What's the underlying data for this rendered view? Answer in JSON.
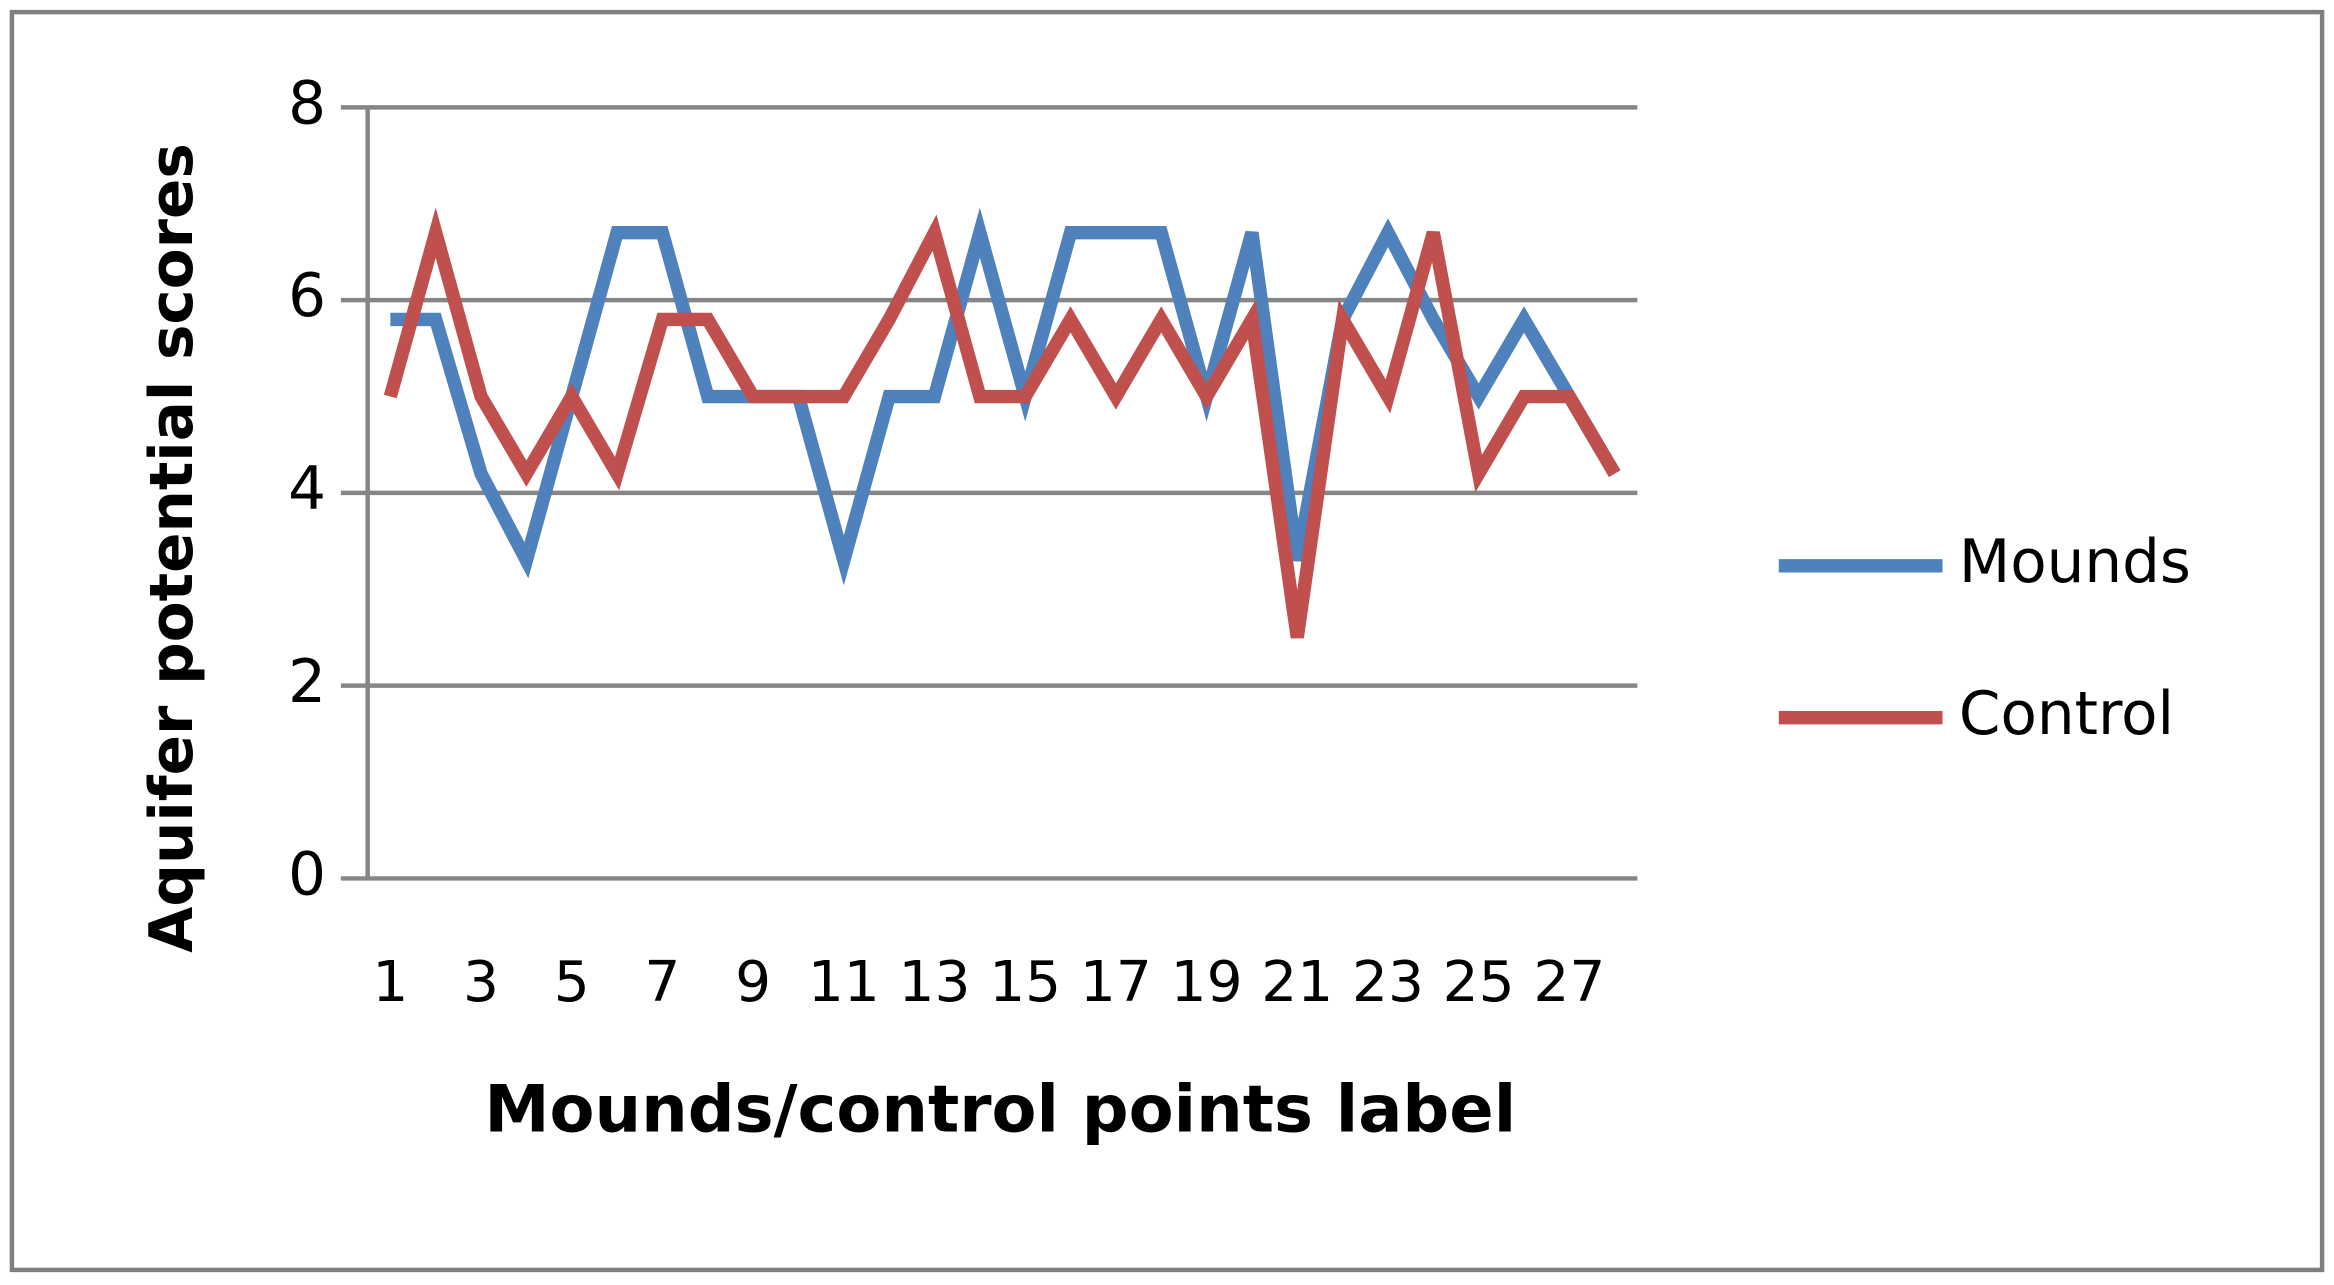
{
  "chart_data": {
    "type": "line",
    "x_label": "Mounds/control points label",
    "y_label": "Aquifer potential scores",
    "categories": [
      "1",
      null,
      "3",
      null,
      "5",
      null,
      "7",
      null,
      "9",
      null,
      "11",
      null,
      "13",
      null,
      "15",
      null,
      "17",
      null,
      "19",
      null,
      "21",
      null,
      "23",
      null,
      "25",
      null,
      "27",
      null
    ],
    "series": [
      {
        "name": "Mounds",
        "color": "#4f81bd",
        "values": [
          5.8,
          5.8,
          4.2,
          3.3,
          5.0,
          6.7,
          6.7,
          5.0,
          5.0,
          5.0,
          3.3,
          5.0,
          5.0,
          6.7,
          5.0,
          6.7,
          6.7,
          6.7,
          5.0,
          6.7,
          3.3,
          5.8,
          6.7,
          5.8,
          5.0,
          5.8,
          5.0,
          4.2
        ]
      },
      {
        "name": "Control",
        "color": "#c0504d",
        "values": [
          5.0,
          6.7,
          5.0,
          4.2,
          5.0,
          4.2,
          5.8,
          5.8,
          5.0,
          5.0,
          5.0,
          5.8,
          6.7,
          5.0,
          5.0,
          5.8,
          5.0,
          5.8,
          5.0,
          5.8,
          2.5,
          5.8,
          5.0,
          6.7,
          4.2,
          5.0,
          5.0,
          4.2
        ]
      }
    ],
    "ylim": [
      0,
      8
    ],
    "yticks": [
      0,
      2,
      4,
      6,
      8
    ],
    "grid": true,
    "legend": "right"
  }
}
